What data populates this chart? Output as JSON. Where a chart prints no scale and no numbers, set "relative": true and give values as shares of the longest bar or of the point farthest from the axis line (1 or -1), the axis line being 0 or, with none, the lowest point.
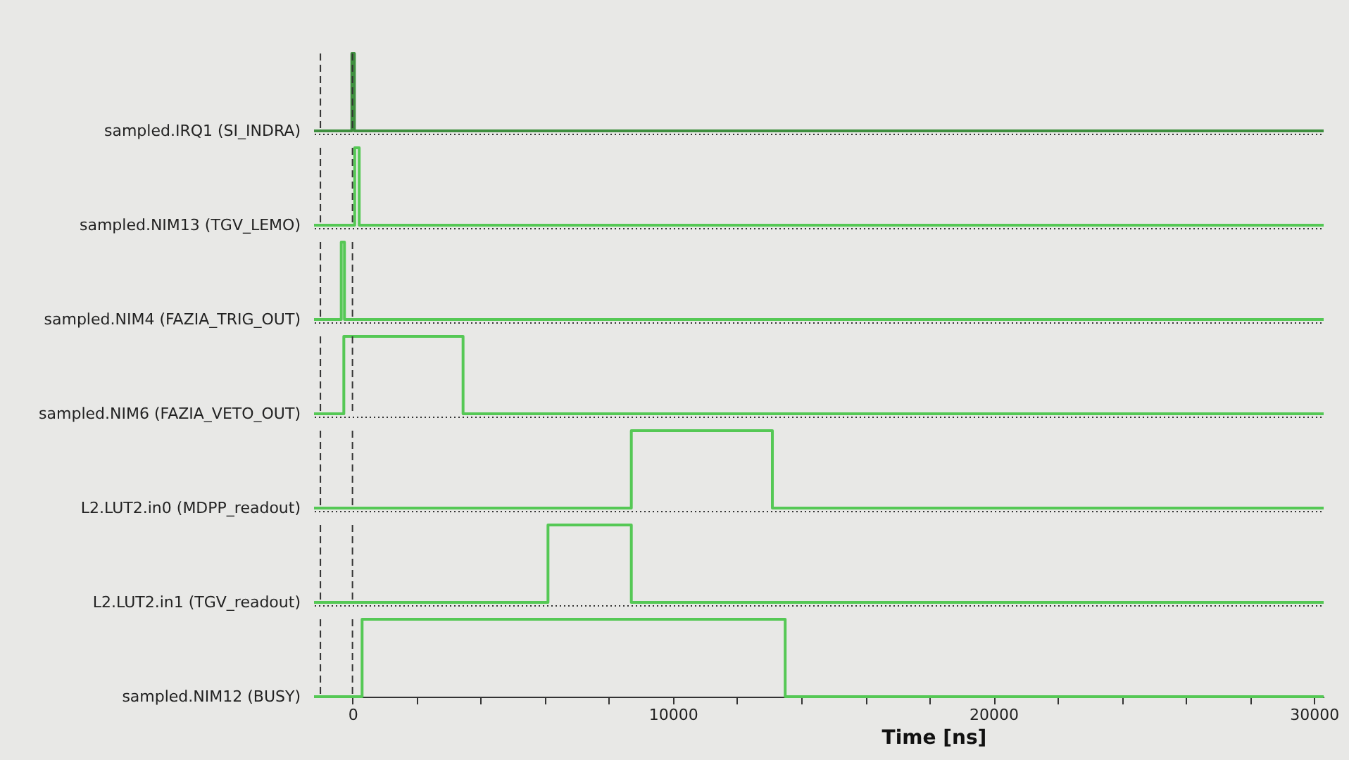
{
  "chart_data": [
    {
      "type": "step",
      "relative": true,
      "ylabel": "sampled.IRQ1 (SI_INDRA)",
      "x": [
        -1200,
        -20,
        60,
        30300
      ],
      "series": [
        {
          "color": "#3f8f3f",
          "values": [
            0,
            1,
            0,
            0
          ]
        }
      ],
      "xlim": [
        -1200,
        30300
      ],
      "tick_labels": false,
      "ref_lines": [
        {
          "axis": "x",
          "value": -1000,
          "line_style": "dashed"
        },
        {
          "axis": "x",
          "value": 0,
          "line_style": "dashed"
        }
      ]
    },
    {
      "type": "step",
      "relative": true,
      "ylabel": "sampled.NIM13 (TGV_LEMO)",
      "x": [
        -1200,
        70,
        210,
        30300
      ],
      "series": [
        {
          "color": "#55c855",
          "values": [
            0,
            1,
            0,
            0
          ]
        }
      ],
      "xlim": [
        -1200,
        30300
      ],
      "tick_labels": false,
      "ref_lines": [
        {
          "axis": "x",
          "value": -1000,
          "line_style": "dashed"
        },
        {
          "axis": "x",
          "value": 0,
          "line_style": "dashed"
        }
      ]
    },
    {
      "type": "step",
      "relative": true,
      "ylabel": "sampled.NIM4 (FAZIA_TRIG_OUT)",
      "x": [
        -1200,
        -350,
        -250,
        30300
      ],
      "series": [
        {
          "color": "#55c855",
          "values": [
            0,
            1,
            0,
            0
          ]
        }
      ],
      "xlim": [
        -1200,
        30300
      ],
      "tick_labels": false,
      "ref_lines": [
        {
          "axis": "x",
          "value": -1000,
          "line_style": "dashed"
        },
        {
          "axis": "x",
          "value": 0,
          "line_style": "dashed"
        }
      ]
    },
    {
      "type": "step",
      "relative": true,
      "ylabel": "sampled.NIM6 (FAZIA_VETO_OUT)",
      "x": [
        -1200,
        -270,
        3450,
        30300
      ],
      "series": [
        {
          "color": "#55c855",
          "values": [
            0,
            1,
            0,
            0
          ]
        }
      ],
      "xlim": [
        -1200,
        30300
      ],
      "tick_labels": false,
      "ref_lines": [
        {
          "axis": "x",
          "value": -1000,
          "line_style": "dashed"
        },
        {
          "axis": "x",
          "value": 0,
          "line_style": "dashed"
        }
      ]
    },
    {
      "type": "step",
      "relative": true,
      "ylabel": "L2.LUT2.in0 (MDPP_readout)",
      "x": [
        -1200,
        8700,
        13100,
        30300
      ],
      "series": [
        {
          "color": "#55c855",
          "values": [
            0,
            1,
            0,
            0
          ]
        }
      ],
      "xlim": [
        -1200,
        30300
      ],
      "tick_labels": false,
      "ref_lines": [
        {
          "axis": "x",
          "value": -1000,
          "line_style": "dashed"
        },
        {
          "axis": "x",
          "value": 0,
          "line_style": "dashed"
        }
      ]
    },
    {
      "type": "step",
      "relative": true,
      "ylabel": "L2.LUT2.in1 (TGV_readout)",
      "x": [
        -1200,
        6100,
        8700,
        30300
      ],
      "series": [
        {
          "color": "#55c855",
          "values": [
            0,
            1,
            0,
            0
          ]
        }
      ],
      "xlim": [
        -1200,
        30300
      ],
      "tick_labels": false,
      "ref_lines": [
        {
          "axis": "x",
          "value": -1000,
          "line_style": "dashed"
        },
        {
          "axis": "x",
          "value": 0,
          "line_style": "dashed"
        }
      ]
    },
    {
      "type": "step",
      "relative": true,
      "ylabel": "sampled.NIM12 (BUSY)",
      "xlabel": "Time [ns]",
      "x": [
        -1200,
        300,
        13500,
        30300
      ],
      "series": [
        {
          "color": "#55c855",
          "values": [
            0,
            1,
            0,
            0
          ]
        }
      ],
      "xlim": [
        -1200,
        30300
      ],
      "xticks": [
        0,
        {
          "value": 2000,
          "label": null
        },
        {
          "value": 4000,
          "label": null
        },
        {
          "value": 6000,
          "label": null
        },
        {
          "value": 8000,
          "label": null
        },
        10000,
        {
          "value": 12000,
          "label": null
        },
        {
          "value": 14000,
          "label": null
        },
        {
          "value": 16000,
          "label": null
        },
        {
          "value": 18000,
          "label": null
        },
        20000,
        {
          "value": 22000,
          "label": null
        },
        {
          "value": 24000,
          "label": null
        },
        {
          "value": 26000,
          "label": null
        },
        {
          "value": 28000,
          "label": null
        },
        30000
      ],
      "tick_labels": "x",
      "ref_lines": [
        {
          "axis": "x",
          "value": -1000,
          "line_style": "dashed"
        },
        {
          "axis": "x",
          "value": 0,
          "line_style": "dashed"
        }
      ]
    }
  ]
}
